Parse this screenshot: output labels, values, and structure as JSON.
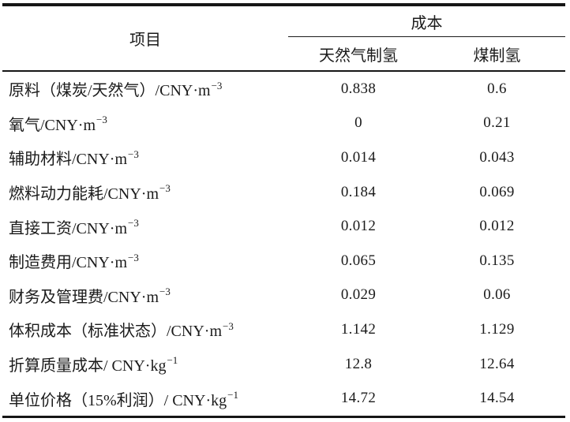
{
  "chart_data": {
    "type": "table",
    "header": {
      "item": "项目",
      "group": "成本",
      "sub": [
        "天然气制氢",
        "煤制氢"
      ]
    },
    "rows": [
      {
        "label": "原料（煤炭/天然气）/CNY·m",
        "sup": "−3",
        "values": [
          "0.838",
          "0.6"
        ]
      },
      {
        "label": "氧气/CNY·m",
        "sup": "−3",
        "values": [
          "0",
          "0.21"
        ]
      },
      {
        "label": "辅助材料/CNY·m",
        "sup": "−3",
        "values": [
          "0.014",
          "0.043"
        ]
      },
      {
        "label": "燃料动力能耗/CNY·m",
        "sup": "−3",
        "values": [
          "0.184",
          "0.069"
        ]
      },
      {
        "label": "直接工资/CNY·m",
        "sup": "−3",
        "values": [
          "0.012",
          "0.012"
        ]
      },
      {
        "label": "制造费用/CNY·m",
        "sup": "−3",
        "values": [
          "0.065",
          "0.135"
        ]
      },
      {
        "label": "财务及管理费/CNY·m",
        "sup": "−3",
        "values": [
          "0.029",
          "0.06"
        ]
      },
      {
        "label": "体积成本（标准状态）/CNY·m",
        "sup": "−3",
        "values": [
          "1.142",
          "1.129"
        ]
      },
      {
        "label": "折算质量成本/ CNY·kg",
        "sup": "−1",
        "values": [
          "12.8",
          "12.64"
        ]
      },
      {
        "label": "单位价格（15%利润）/ CNY·kg",
        "sup": "−1",
        "values": [
          "14.72",
          "14.54"
        ]
      }
    ],
    "colors": {
      "text": "#1b1b1b",
      "rule": "#161616",
      "background": "#ffffff"
    }
  }
}
